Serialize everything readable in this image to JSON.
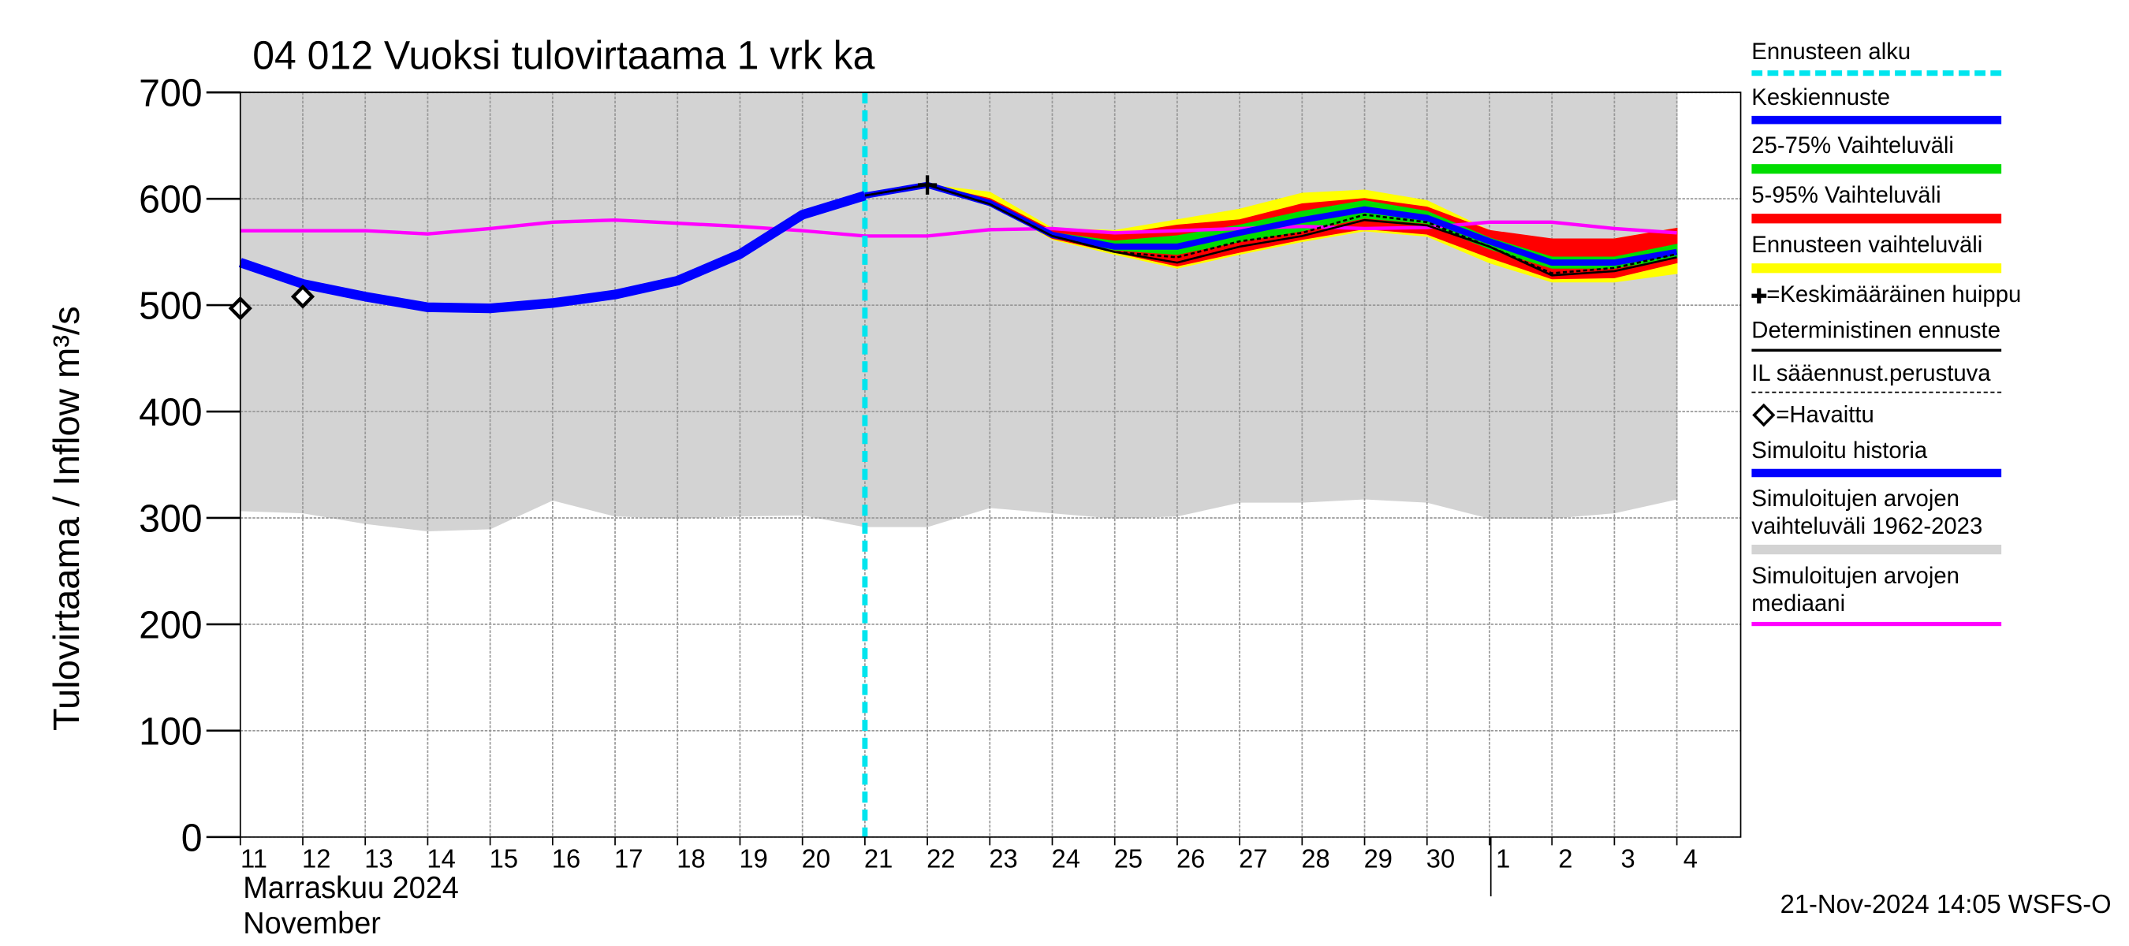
{
  "chart_data": {
    "type": "line",
    "title": "04 012 Vuoksi tulovirtaama 1 vrk ka",
    "y_label": "Tulovirtaama / Inflow   m³/s",
    "x_label": "Marraskuu 2024",
    "x_label_2": "November",
    "footer": "21-Nov-2024 14:05 WSFS-O",
    "categories": [
      "11",
      "12",
      "13",
      "14",
      "15",
      "16",
      "17",
      "18",
      "19",
      "20",
      "21",
      "22",
      "23",
      "24",
      "25",
      "26",
      "27",
      "28",
      "29",
      "30",
      "1",
      "2",
      "3",
      "4"
    ],
    "ylim": [
      0,
      700
    ],
    "yticks": [
      0,
      100,
      200,
      300,
      400,
      500,
      600,
      700
    ],
    "grid": true,
    "series": [
      {
        "name": "Ennusteen alku",
        "color": "#00e5ee",
        "kind": "vline",
        "at_index": 10
      },
      {
        "name": "Keskiennuste",
        "color": "#0000ff",
        "kind": "line",
        "values": [
          null,
          null,
          null,
          null,
          null,
          null,
          null,
          null,
          null,
          null,
          603,
          613,
          596,
          566,
          555,
          555,
          568,
          580,
          590,
          582,
          560,
          540,
          540,
          550
        ]
      },
      {
        "name": "25-75% Vaihteluväli",
        "color": "#00dd00",
        "kind": "band",
        "low": [
          null,
          null,
          null,
          null,
          null,
          null,
          null,
          null,
          null,
          null,
          603,
          613,
          596,
          564,
          552,
          548,
          560,
          570,
          582,
          577,
          553,
          535,
          535,
          545
        ],
        "high": [
          null,
          null,
          null,
          null,
          null,
          null,
          null,
          null,
          null,
          null,
          603,
          613,
          598,
          568,
          560,
          565,
          575,
          588,
          598,
          588,
          563,
          545,
          545,
          557
        ]
      },
      {
        "name": "5-95% Vaihteluväli",
        "color": "#ff0000",
        "kind": "band",
        "low": [
          null,
          null,
          null,
          null,
          null,
          null,
          null,
          null,
          null,
          null,
          603,
          613,
          596,
          563,
          550,
          537,
          550,
          562,
          572,
          567,
          545,
          525,
          526,
          540
        ],
        "high": [
          null,
          null,
          null,
          null,
          null,
          null,
          null,
          null,
          null,
          null,
          603,
          613,
          600,
          570,
          566,
          575,
          580,
          595,
          600,
          592,
          570,
          562,
          562,
          572
        ]
      },
      {
        "name": "Ennusteen vaihteluväli",
        "color": "#ffff00",
        "kind": "band",
        "low": [
          null,
          null,
          null,
          null,
          null,
          null,
          null,
          null,
          null,
          null,
          603,
          613,
          596,
          562,
          548,
          535,
          548,
          560,
          570,
          565,
          540,
          522,
          522,
          530
        ],
        "high": [
          null,
          null,
          null,
          null,
          null,
          null,
          null,
          null,
          null,
          null,
          603,
          613,
          606,
          572,
          570,
          580,
          590,
          605,
          608,
          598,
          570,
          560,
          562,
          572
        ]
      },
      {
        "name": "=Keskimääräinen huippu",
        "color": "#000000",
        "kind": "plus",
        "at_index": 11,
        "value": 613
      },
      {
        "name": "Deterministinen ennuste",
        "color": "#000000",
        "kind": "thin",
        "values": [
          null,
          null,
          null,
          null,
          null,
          null,
          null,
          null,
          null,
          null,
          603,
          613,
          595,
          565,
          550,
          540,
          555,
          565,
          580,
          575,
          555,
          528,
          532,
          545
        ]
      },
      {
        "name": "IL sääennust.perustuva",
        "color": "#000000",
        "kind": "dashed",
        "values": [
          null,
          null,
          null,
          null,
          null,
          null,
          null,
          null,
          null,
          null,
          603,
          613,
          595,
          565,
          550,
          545,
          560,
          568,
          585,
          578,
          555,
          530,
          535,
          548
        ]
      },
      {
        "name": "=Havaittu",
        "color": "#000000",
        "kind": "diamond",
        "values": [
          497,
          508,
          null,
          null,
          null,
          null,
          null,
          null,
          null,
          null,
          null,
          null,
          null,
          null,
          null,
          null,
          null,
          null,
          null,
          null,
          null,
          null,
          null,
          null
        ]
      },
      {
        "name": "Simuloitu historia",
        "color": "#0000ff",
        "kind": "line",
        "values": [
          540,
          520,
          508,
          498,
          497,
          502,
          510,
          523,
          548,
          585,
          603,
          null,
          null,
          null,
          null,
          null,
          null,
          null,
          null,
          null,
          null,
          null,
          null,
          null
        ]
      },
      {
        "name": "Simuloitujen arvojen vaihteluväli 1962-2023",
        "color": "#d3d3d3",
        "kind": "band",
        "low": [
          307,
          305,
          295,
          288,
          290,
          317,
          302,
          300,
          302,
          303,
          292,
          292,
          310,
          305,
          300,
          302,
          315,
          315,
          318,
          315,
          300,
          300,
          305,
          318
        ],
        "high": [
          700,
          700,
          700,
          700,
          700,
          700,
          700,
          700,
          700,
          700,
          700,
          700,
          700,
          700,
          700,
          700,
          700,
          700,
          700,
          700,
          700,
          700,
          700,
          700
        ]
      },
      {
        "name": "Simuloitujen arvojen mediaani",
        "color": "#ff00ff",
        "kind": "median",
        "values": [
          570,
          570,
          570,
          567,
          572,
          578,
          580,
          577,
          574,
          570,
          565,
          565,
          571,
          572,
          568,
          570,
          572,
          574,
          572,
          573,
          578,
          578,
          572,
          568
        ]
      }
    ]
  }
}
